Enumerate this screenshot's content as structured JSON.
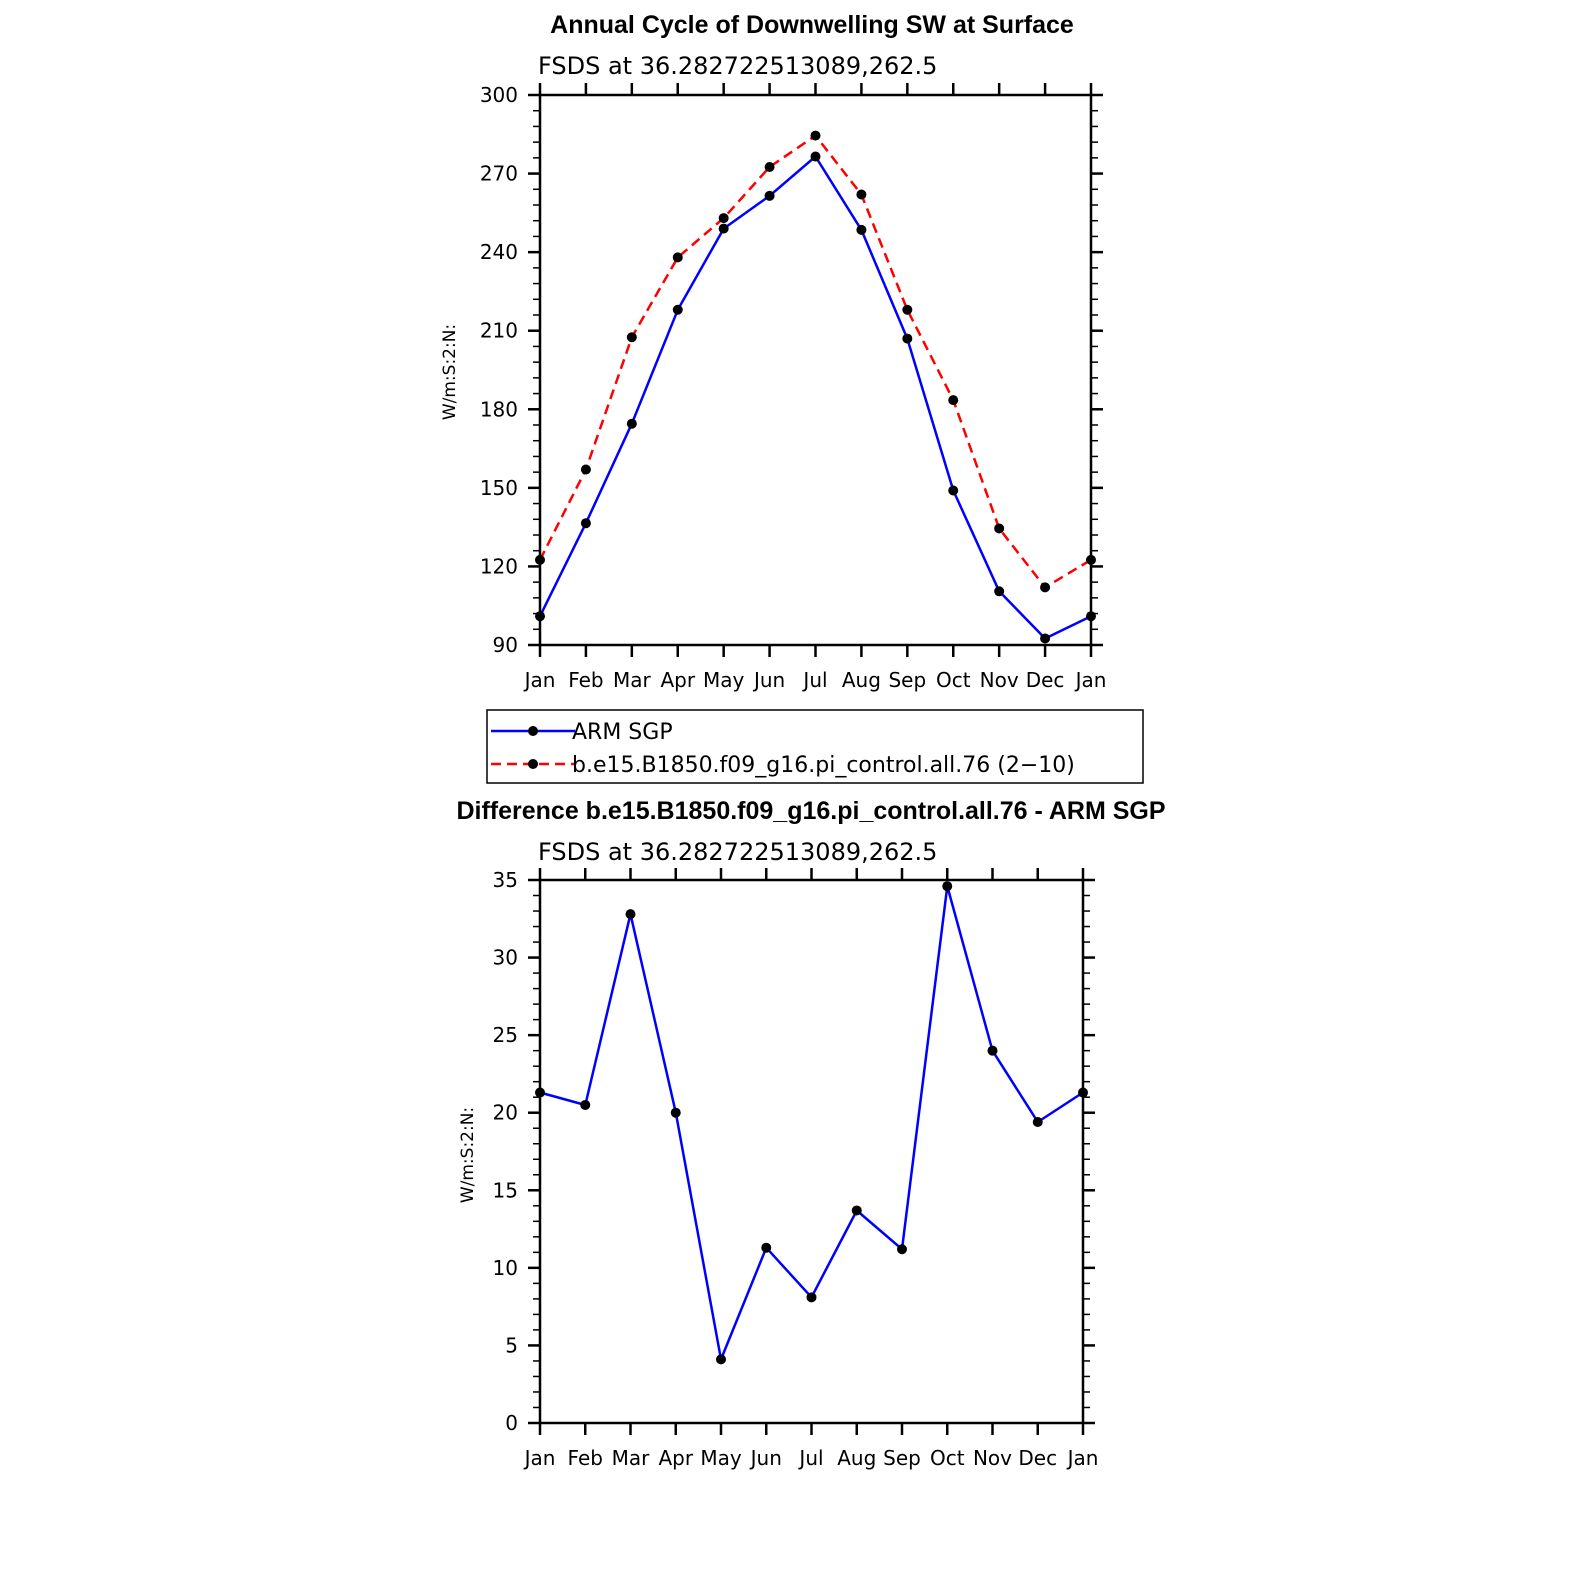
{
  "colors": {
    "obs": "#0000ff",
    "model": "#ff0000",
    "axis": "#000000",
    "marker": "#000000"
  },
  "chart_data": [
    {
      "type": "line",
      "title": "Annual Cycle of Downwelling SW at Surface",
      "subtitle": "FSDS at 36.282722513089,262.5",
      "ylabel": "W/m:S:2:N:",
      "ylim": [
        90,
        300
      ],
      "yticks": [
        90,
        120,
        150,
        180,
        210,
        240,
        270,
        300
      ],
      "categories": [
        "Jan",
        "Feb",
        "Mar",
        "Apr",
        "May",
        "Jun",
        "Jul",
        "Aug",
        "Sep",
        "Oct",
        "Nov",
        "Dec",
        "Jan"
      ],
      "series": [
        {
          "name": "ARM SGP",
          "style": "solid",
          "color": "#0000ff",
          "values": [
            101,
            136.5,
            174.5,
            218,
            249,
            261.5,
            276.5,
            248.5,
            207,
            149,
            110.5,
            92.5,
            101
          ]
        },
        {
          "name": "b.e15.B1850.f09_g16.pi_control.all.76 (2−10)",
          "style": "dashed",
          "color": "#ff0000",
          "values": [
            122.5,
            157,
            207.5,
            238,
            253,
            272.5,
            284.5,
            262,
            218,
            183.5,
            134.5,
            112,
            122.5
          ]
        }
      ],
      "legend": "below"
    },
    {
      "type": "line",
      "title": "Difference b.e15.B1850.f09_g16.pi_control.all.76 - ARM SGP",
      "subtitle": "FSDS at 36.282722513089,262.5",
      "ylabel": "W/m:S:2:N:",
      "ylim": [
        0,
        35
      ],
      "yticks": [
        0,
        5,
        10,
        15,
        20,
        25,
        30,
        35
      ],
      "categories": [
        "Jan",
        "Feb",
        "Mar",
        "Apr",
        "May",
        "Jun",
        "Jul",
        "Aug",
        "Sep",
        "Oct",
        "Nov",
        "Dec",
        "Jan"
      ],
      "series": [
        {
          "style": "solid",
          "color": "#0000ff",
          "values": [
            21.3,
            20.5,
            32.8,
            20,
            4.1,
            11.3,
            8.1,
            13.7,
            11.2,
            34.6,
            24,
            19.4,
            21.3
          ]
        }
      ]
    }
  ]
}
